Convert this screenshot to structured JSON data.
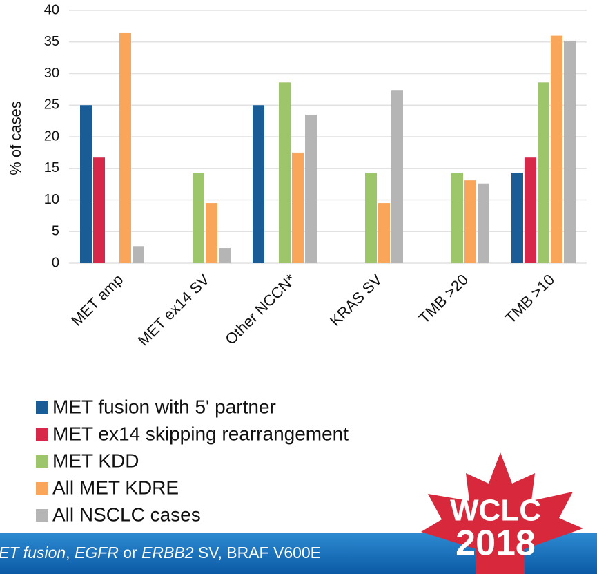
{
  "chart_data": {
    "type": "bar",
    "y_label": "% of cases",
    "categories": [
      "MET amp",
      "MET ex14 SV",
      "Other NCCN*",
      "KRAS SV",
      "TMB >20",
      "TMB >10"
    ],
    "series": [
      {
        "name": "MET fusion with 5' partner",
        "color": "#1a5c96",
        "values": [
          25,
          0,
          25,
          0,
          0,
          14.3
        ]
      },
      {
        "name": "MET ex14 skipping rearrangement",
        "color": "#d7284a",
        "values": [
          16.7,
          0,
          0,
          0,
          0,
          16.7
        ]
      },
      {
        "name": "MET KDD",
        "color": "#9dc56a",
        "values": [
          0,
          14.3,
          28.6,
          14.3,
          14.3,
          28.6
        ]
      },
      {
        "name": "All MET KDRE",
        "color": "#f9a65a",
        "values": [
          36.4,
          9.5,
          17.5,
          9.5,
          13.1,
          36.0
        ]
      },
      {
        "name": "All NSCLC cases",
        "color": "#b5b5b5",
        "values": [
          2.7,
          2.4,
          23.5,
          27.3,
          12.6,
          35.2
        ]
      }
    ],
    "ylim": [
      0,
      40
    ],
    "yticks": [
      0,
      5,
      10,
      15,
      20,
      25,
      30,
      35,
      40
    ],
    "grid": true
  },
  "footer": [
    "ET fusion",
    ", ",
    "EGFR",
    " or ",
    "ERBB2",
    " SV, BRAF V600E"
  ],
  "logo": {
    "line1": "WCLC",
    "line2": "2018"
  }
}
